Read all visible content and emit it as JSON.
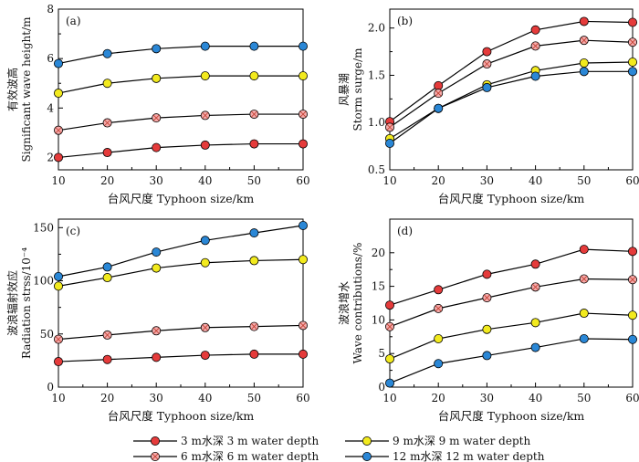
{
  "chart_data": [
    {
      "type": "line",
      "panel_label": "(a)",
      "title": "",
      "xlabel": "台风尺度 Typhoon size/km",
      "ylabel_cn": "有效波高",
      "ylabel_en": "Significant wave height/m",
      "x": [
        10,
        20,
        30,
        40,
        50,
        60
      ],
      "xlim": [
        10,
        60
      ],
      "ylim": [
        1.5,
        8
      ],
      "yticks": [
        2,
        4,
        6,
        8
      ],
      "xticks": [
        10,
        20,
        30,
        40,
        50,
        60
      ],
      "series": [
        {
          "name": "3 m水深 3 m water depth",
          "values": [
            2.0,
            2.2,
            2.4,
            2.5,
            2.55,
            2.55
          ]
        },
        {
          "name": "6 m水深 6 m water depth",
          "values": [
            3.1,
            3.4,
            3.6,
            3.7,
            3.75,
            3.75
          ]
        },
        {
          "name": "9 m水深 9 m water depth",
          "values": [
            4.6,
            5.0,
            5.2,
            5.3,
            5.3,
            5.3
          ]
        },
        {
          "name": "12 m水深 12 m water depth",
          "values": [
            5.8,
            6.2,
            6.4,
            6.5,
            6.5,
            6.5
          ]
        }
      ]
    },
    {
      "type": "line",
      "panel_label": "(b)",
      "title": "",
      "xlabel": "台风尺度 Typhoon size/km",
      "ylabel_cn": "风暴潮",
      "ylabel_en": "Storm surge/m",
      "x": [
        10,
        20,
        30,
        40,
        50,
        60
      ],
      "xlim": [
        10,
        60
      ],
      "ylim": [
        0.5,
        2.2
      ],
      "yticks": [
        "0.5",
        "1.0",
        "1.5",
        "2.0"
      ],
      "xticks": [
        10,
        20,
        30,
        40,
        50,
        60
      ],
      "series": [
        {
          "name": "3 m水深 3 m water depth",
          "values": [
            1.01,
            1.39,
            1.75,
            1.98,
            2.07,
            2.06
          ]
        },
        {
          "name": "6 m水深 6 m water depth",
          "values": [
            0.95,
            1.31,
            1.62,
            1.81,
            1.87,
            1.85
          ]
        },
        {
          "name": "9 m水深 9 m water depth",
          "values": [
            0.83,
            1.15,
            1.4,
            1.55,
            1.63,
            1.64
          ]
        },
        {
          "name": "12 m水深 12 m water depth",
          "values": [
            0.78,
            1.15,
            1.37,
            1.49,
            1.54,
            1.54
          ]
        }
      ]
    },
    {
      "type": "line",
      "panel_label": "(c)",
      "title": "",
      "xlabel": "台风尺度 Typhoon size/km",
      "ylabel_cn": "波浪辐射效应",
      "ylabel_en": "Radiation strss/10⁻⁴",
      "x": [
        10,
        20,
        30,
        40,
        50,
        60
      ],
      "xlim": [
        10,
        60
      ],
      "ylim": [
        0,
        158
      ],
      "yticks": [
        0,
        50,
        100,
        150
      ],
      "xticks": [
        10,
        20,
        30,
        40,
        50,
        60
      ],
      "series": [
        {
          "name": "3 m水深 3 m water depth",
          "values": [
            24,
            26,
            28,
            30,
            31,
            31
          ]
        },
        {
          "name": "6 m水深 6 m water depth",
          "values": [
            45,
            49,
            53,
            56,
            57,
            58
          ]
        },
        {
          "name": "9 m水深 9 m water depth",
          "values": [
            95,
            103,
            112,
            117,
            119,
            120
          ]
        },
        {
          "name": "12 m水深 12 m water depth",
          "values": [
            104,
            113,
            127,
            138,
            145,
            152
          ]
        }
      ]
    },
    {
      "type": "line",
      "panel_label": "(d)",
      "title": "",
      "xlabel": "台风尺度 Typhoon size/km",
      "ylabel_cn": "波浪增水",
      "ylabel_en": "Wave contributions/%",
      "x": [
        10,
        20,
        30,
        40,
        50,
        60
      ],
      "xlim": [
        10,
        60
      ],
      "ylim": [
        0,
        25
      ],
      "yticks": [
        0,
        5,
        10,
        15,
        20
      ],
      "xticks": [
        10,
        20,
        30,
        40,
        50,
        60
      ],
      "series": [
        {
          "name": "3 m水深 3 m water depth",
          "values": [
            12.2,
            14.5,
            16.8,
            18.3,
            20.5,
            20.2
          ]
        },
        {
          "name": "6 m水深 6 m water depth",
          "values": [
            9.0,
            11.7,
            13.3,
            14.9,
            16.1,
            16.0
          ]
        },
        {
          "name": "9 m水深 9 m water depth",
          "values": [
            4.2,
            7.2,
            8.6,
            9.6,
            11.0,
            10.7
          ]
        },
        {
          "name": "12 m水深 12 m water depth",
          "values": [
            0.6,
            3.5,
            4.7,
            5.9,
            7.2,
            7.1
          ]
        }
      ]
    }
  ],
  "legend": [
    {
      "label": "3 m水深 3 m water depth",
      "color": "#e53b3b",
      "style": "solid"
    },
    {
      "label": "9 m水深 9 m water depth",
      "color": "#f2ea1e",
      "style": "solid"
    },
    {
      "label": "6 m水深 6 m water depth",
      "color": "#f4aaaa",
      "style": "cross"
    },
    {
      "label": "12 m水深 12 m water depth",
      "color": "#2a87d6",
      "style": "solid"
    }
  ],
  "series_styles": [
    {
      "fill": "#e53b3b",
      "cross": false
    },
    {
      "fill": "#f4aaaa",
      "cross": true
    },
    {
      "fill": "#f2ea1e",
      "cross": false
    },
    {
      "fill": "#2a87d6",
      "cross": false
    }
  ]
}
